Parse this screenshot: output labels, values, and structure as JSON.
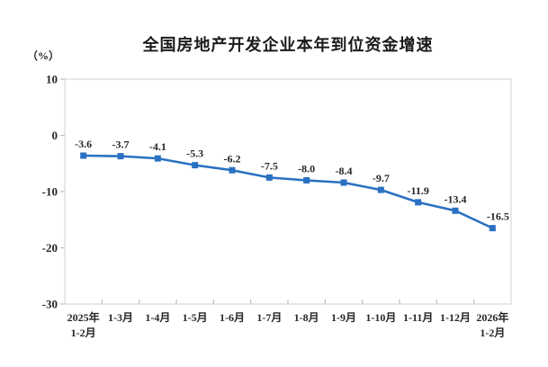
{
  "chart_data": {
    "type": "line",
    "title": "全国房地产开发企业本年到位资金增速",
    "unit_label": "（%）",
    "categories": [
      "2025年\n1-2月",
      "1-3月",
      "1-4月",
      "1-5月",
      "1-6月",
      "1-7月",
      "1-8月",
      "1-9月",
      "1-10月",
      "1-11月",
      "1-12月",
      "2026年\n1-2月"
    ],
    "values": [
      -3.6,
      -3.7,
      -4.1,
      -5.3,
      -6.2,
      -7.5,
      -8.0,
      -8.4,
      -9.7,
      -11.9,
      -13.4,
      -16.5
    ],
    "ylim": [
      -30,
      10
    ],
    "yticks": [
      10,
      0,
      -10,
      -20,
      -30
    ],
    "grid": false,
    "legend": "none",
    "marker": "square",
    "colors": {
      "line": "#2A71C2",
      "text": "#262626",
      "border": "#D9D9D9",
      "tick": "#BFBFBF"
    }
  }
}
